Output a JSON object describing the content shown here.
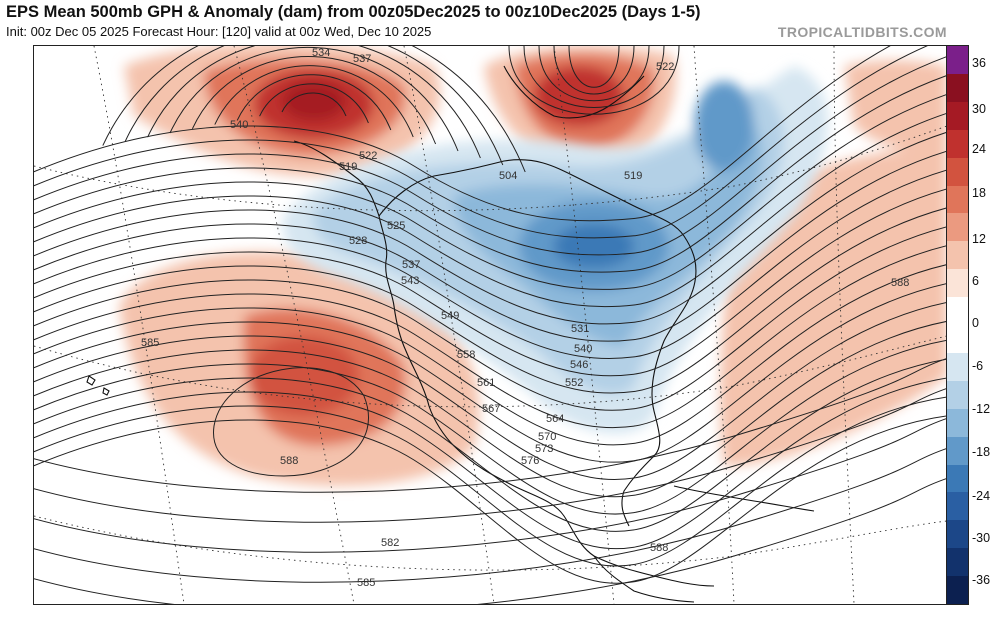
{
  "header": {
    "title": "EPS Mean 500mb GPH & Anomaly (dam) from 00z05Dec2025 to 00z10Dec2025 (Days 1-5)",
    "subtitle": "Init: 00z Dec 05 2025   Forecast Hour: [120]   valid at 00z Wed, Dec 10 2025",
    "brand": "TROPICALTIDBITS.COM"
  },
  "colorbar": {
    "labels": [
      "36",
      "30",
      "24",
      "18",
      "12",
      "6",
      "0",
      "-6",
      "-12",
      "-18",
      "-24",
      "-30",
      "-36"
    ],
    "colors": [
      "#7b1f8a",
      "#8a1020",
      "#a51a24",
      "#c0312e",
      "#d2533f",
      "#e0755a",
      "#eb9a80",
      "#f4c3ad",
      "#fbe4d8",
      "#ffffff",
      "#ffffff",
      "#d6e6f1",
      "#b3d0e6",
      "#8cb8da",
      "#6199c9",
      "#3b79b6",
      "#2a5fa3",
      "#1c4788",
      "#12326c",
      "#0c2050"
    ]
  },
  "contour_labels": [
    "534",
    "537",
    "540",
    "519",
    "522",
    "522",
    "519",
    "504",
    "528",
    "525",
    "537",
    "543",
    "549",
    "558",
    "561",
    "567",
    "531",
    "540",
    "546",
    "552",
    "564",
    "570",
    "573",
    "576",
    "585",
    "588",
    "588",
    "582",
    "585",
    "588"
  ],
  "map": {
    "ridge_color": "#e8866a",
    "trough_color": "#3f86c2"
  }
}
